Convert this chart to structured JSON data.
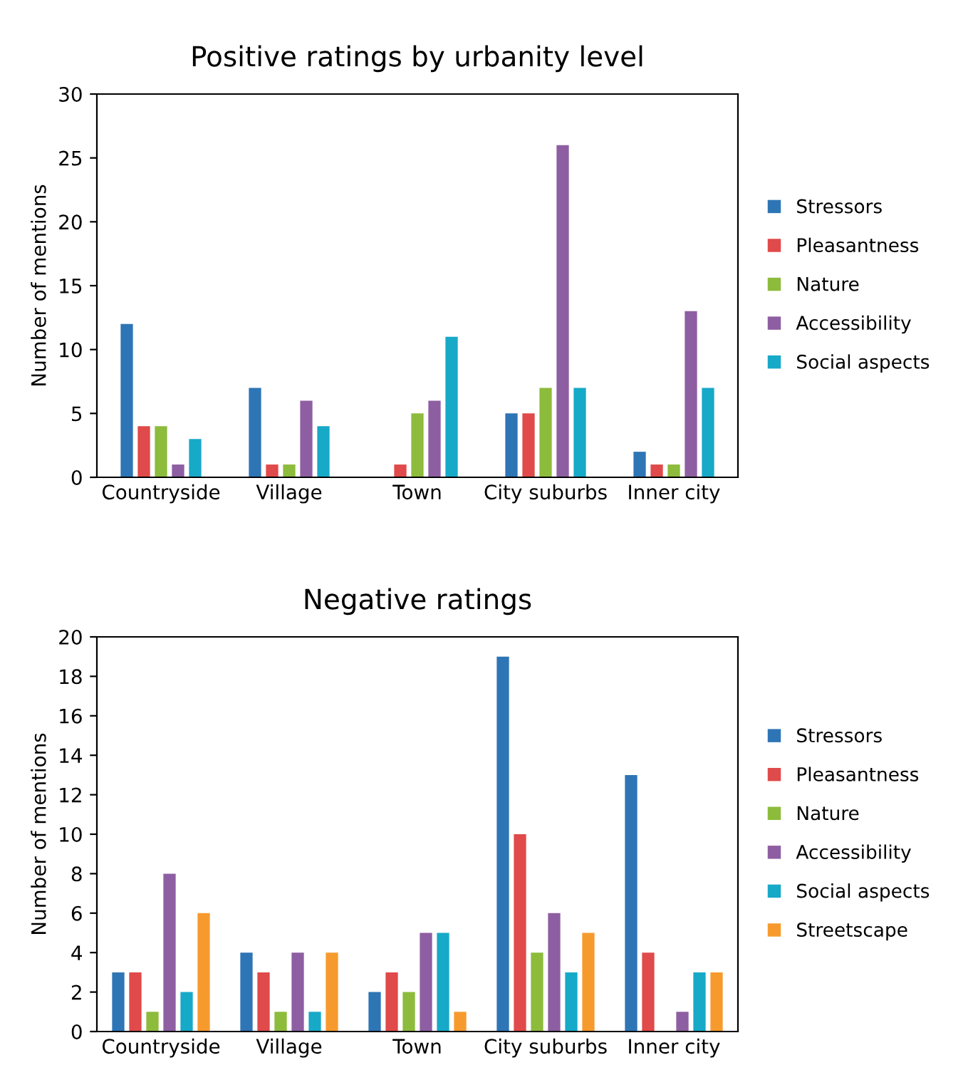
{
  "chart_data": [
    {
      "type": "bar",
      "title": "Positive ratings by urbanity level",
      "ylabel": "Number of mentions",
      "categories": [
        "Countryside",
        "Village",
        "Town",
        "City suburbs",
        "Inner city"
      ],
      "series": [
        {
          "name": "Stressors",
          "color": "#2e75b6",
          "values": [
            12,
            7,
            0,
            5,
            2
          ]
        },
        {
          "name": "Pleasantness",
          "color": "#e04a4a",
          "values": [
            4,
            1,
            1,
            5,
            1
          ]
        },
        {
          "name": "Nature",
          "color": "#8dbb3c",
          "values": [
            4,
            1,
            5,
            7,
            1
          ]
        },
        {
          "name": "Accessibility",
          "color": "#8e5ea2",
          "values": [
            1,
            6,
            6,
            26,
            13
          ]
        },
        {
          "name": "Social aspects",
          "color": "#17a9c8",
          "values": [
            3,
            4,
            11,
            7,
            7
          ]
        }
      ],
      "ylim": [
        0,
        30
      ],
      "yticks": [
        0,
        5,
        10,
        15,
        20,
        25,
        30
      ],
      "grid": false,
      "legend": "right"
    },
    {
      "type": "bar",
      "title": "Negative ratings",
      "ylabel": "Number of mentions",
      "categories": [
        "Countryside",
        "Village",
        "Town",
        "City suburbs",
        "Inner city"
      ],
      "series": [
        {
          "name": "Stressors",
          "color": "#2e75b6",
          "values": [
            3,
            4,
            2,
            19,
            13
          ]
        },
        {
          "name": "Pleasantness",
          "color": "#e04a4a",
          "values": [
            3,
            3,
            3,
            10,
            4
          ]
        },
        {
          "name": "Nature",
          "color": "#8dbb3c",
          "values": [
            1,
            1,
            2,
            4,
            0
          ]
        },
        {
          "name": "Accessibility",
          "color": "#8e5ea2",
          "values": [
            8,
            4,
            5,
            6,
            1
          ]
        },
        {
          "name": "Social aspects",
          "color": "#17a9c8",
          "values": [
            2,
            1,
            5,
            3,
            3
          ]
        },
        {
          "name": "Streetscape",
          "color": "#f79a2e",
          "values": [
            6,
            4,
            1,
            5,
            3
          ]
        }
      ],
      "ylim": [
        0,
        20
      ],
      "yticks": [
        0,
        2,
        4,
        6,
        8,
        10,
        12,
        14,
        16,
        18,
        20
      ],
      "grid": false,
      "legend": "right"
    }
  ]
}
